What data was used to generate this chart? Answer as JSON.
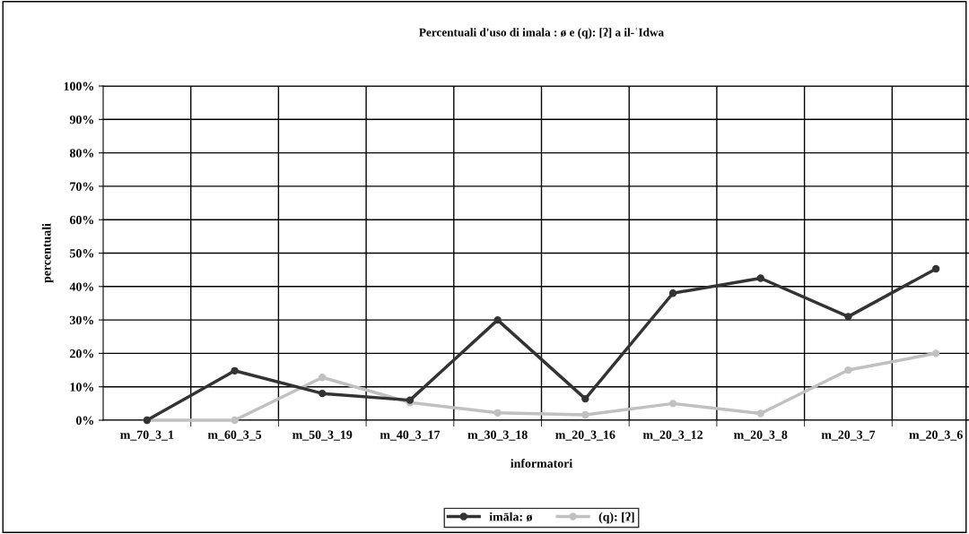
{
  "chart_data": {
    "type": "line",
    "title": "Percentuali d'uso di imala : ø e (q): [ʔ] a il-ʿIdwa",
    "xlabel": "informatori",
    "ylabel": "percentuali",
    "categories": [
      "m_70_3_1",
      "m_60_3_5",
      "m_50_3_19",
      "m_40_3_17",
      "m_30_3_18",
      "m_20_3_16",
      "m_20_3_12",
      "m_20_3_8",
      "m_20_3_7",
      "m_20_3_6"
    ],
    "series": [
      {
        "name": "imāla: ø",
        "color": "#333333",
        "values": [
          0,
          14.8,
          8,
          6,
          30,
          6.4,
          38,
          42.5,
          31,
          45.3
        ]
      },
      {
        "name": "(q): [ʔ]",
        "color": "#c0c0c0",
        "values": [
          0,
          0,
          12.8,
          5.3,
          2.2,
          1.6,
          5,
          2,
          15,
          20
        ]
      }
    ],
    "ylim": [
      0,
      100
    ],
    "yticks": [
      {
        "value": 0,
        "label": "0%"
      },
      {
        "value": 10,
        "label": "10%"
      },
      {
        "value": 20,
        "label": "20%"
      },
      {
        "value": 30,
        "label": "30%"
      },
      {
        "value": 40,
        "label": "40%"
      },
      {
        "value": 50,
        "label": "50%"
      },
      {
        "value": 60,
        "label": "60%"
      },
      {
        "value": 70,
        "label": "70%"
      },
      {
        "value": 80,
        "label": "80%"
      },
      {
        "value": 90,
        "label": "90%"
      },
      {
        "value": 100,
        "label": "100%"
      }
    ],
    "grid": true,
    "legend": "bottom",
    "marker": "circle",
    "line_style": "solid"
  }
}
